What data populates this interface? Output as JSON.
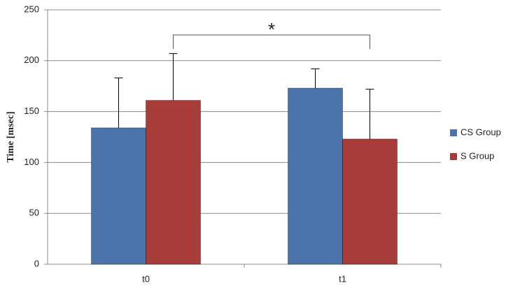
{
  "chart_data": {
    "type": "bar",
    "ylabel": "Time [msec]",
    "categories": [
      "t0",
      "t1"
    ],
    "series": [
      {
        "name": "CS Group",
        "color": "#4a74aa",
        "values": [
          134,
          173
        ],
        "errors": [
          49,
          19
        ]
      },
      {
        "name": "S Group",
        "color": "#a83c38",
        "values": [
          161,
          123
        ],
        "errors": [
          46,
          49
        ]
      }
    ],
    "ylim": [
      0,
      250
    ],
    "yticks": [
      0,
      50,
      100,
      150,
      200,
      250
    ],
    "grid": true,
    "legend": "right",
    "annotation": "*"
  }
}
